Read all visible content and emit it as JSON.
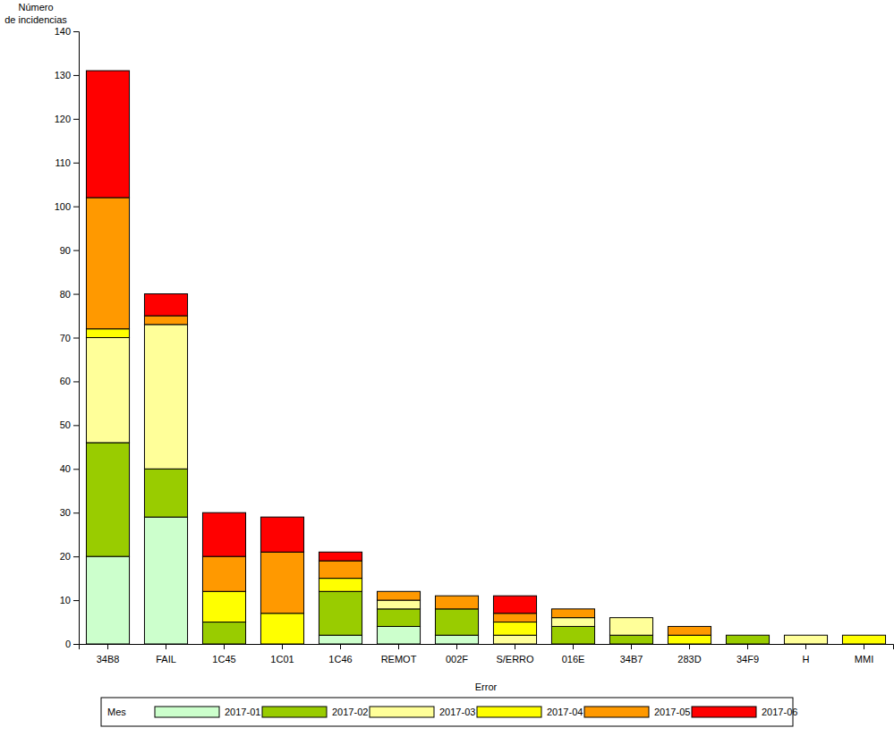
{
  "chart_data": {
    "type": "bar",
    "stacked": true,
    "x_label": "Error",
    "y_label": "Número de incidencias",
    "legend_title": "Mes",
    "legend": "bottom",
    "grid": false,
    "categories": [
      "34B8",
      "FAIL",
      "1C45",
      "1C01",
      "1C46",
      "REMOT",
      "002F",
      "S/ERRO",
      "016E",
      "34B7",
      "283D",
      "34F9",
      "H",
      "MMI"
    ],
    "series": [
      {
        "name": "2017-01",
        "color": "#ccffcc",
        "values": [
          20,
          29,
          0,
          0,
          2,
          4,
          2,
          0,
          0,
          0,
          0,
          0,
          0,
          0
        ]
      },
      {
        "name": "2017-02",
        "color": "#99cc00",
        "values": [
          26,
          11,
          5,
          0,
          10,
          4,
          6,
          0,
          4,
          2,
          0,
          2,
          0,
          0
        ]
      },
      {
        "name": "2017-03",
        "color": "#ffff99",
        "values": [
          24,
          33,
          0,
          0,
          0,
          2,
          0,
          2,
          2,
          4,
          0,
          0,
          2,
          0
        ]
      },
      {
        "name": "2017-04",
        "color": "#ffff00",
        "values": [
          2,
          0,
          7,
          7,
          3,
          0,
          0,
          3,
          0,
          0,
          2,
          0,
          0,
          2
        ]
      },
      {
        "name": "2017-05",
        "color": "#ff9900",
        "values": [
          30,
          2,
          8,
          14,
          4,
          2,
          3,
          2,
          2,
          0,
          2,
          0,
          0,
          0
        ]
      },
      {
        "name": "2017-06",
        "color": "#ff0000",
        "values": [
          29,
          5,
          10,
          8,
          2,
          0,
          0,
          4,
          0,
          0,
          0,
          0,
          0,
          0
        ]
      }
    ],
    "ylim": [
      0,
      140
    ],
    "yticks": [
      0,
      10,
      20,
      30,
      40,
      50,
      60,
      70,
      80,
      90,
      100,
      110,
      120,
      130,
      140
    ]
  }
}
